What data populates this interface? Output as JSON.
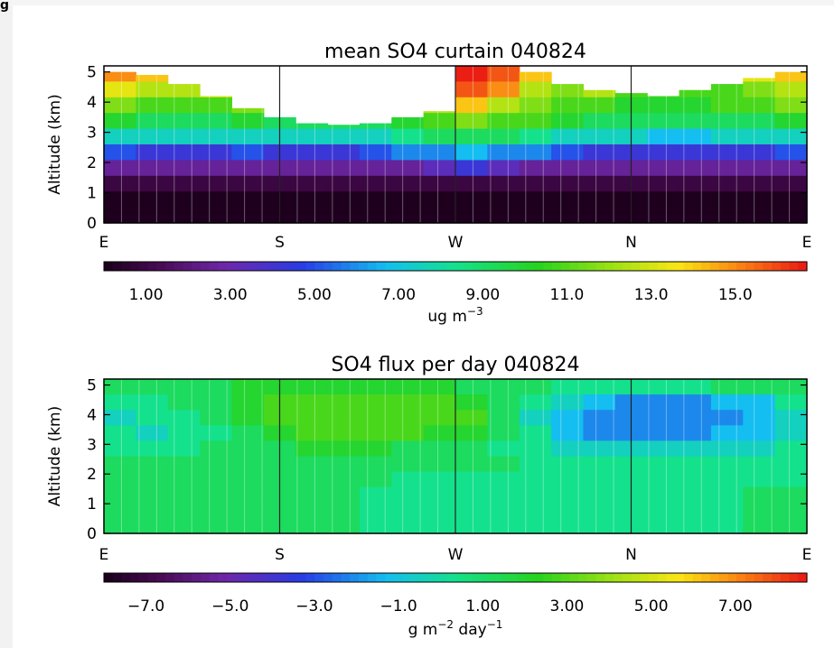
{
  "corner_label": "g",
  "chart_data": [
    {
      "type": "heatmap",
      "title": "mean SO4 curtain 040824",
      "xlabel": "",
      "ylabel": "Altitude (km)",
      "x_tick_labels": [
        "E",
        "S",
        "W",
        "N",
        "E"
      ],
      "y_tick_labels": [
        "0",
        "1",
        "2",
        "3",
        "4",
        "5"
      ],
      "ylim": [
        0,
        5.2
      ],
      "colorbar": {
        "tick_labels": [
          "1.00",
          "3.00",
          "5.00",
          "7.00",
          "9.00",
          "11.0",
          "13.0",
          "15.0"
        ],
        "range": [
          1.0,
          16.0
        ],
        "unit_base": "ug m",
        "unit_exp": "−3",
        "unit_tail": ""
      },
      "terrain_top_km": [
        5.0,
        4.9,
        4.6,
        4.2,
        3.8,
        3.5,
        3.3,
        3.25,
        3.3,
        3.5,
        3.7,
        5.2,
        5.2,
        5.0,
        4.6,
        4.4,
        4.3,
        4.2,
        4.4,
        4.6,
        4.8,
        5.0
      ],
      "field": [
        [
          14.5,
          14.0,
          13.5,
          14.5,
          15.0,
          14.0,
          13.5,
          12.5,
          12.0,
          13.0,
          15.5,
          16.0,
          15.5,
          14.0,
          13.0,
          15.0,
          13.5,
          12.5,
          12.5,
          13.0,
          13.0,
          13.5
        ],
        [
          13.0,
          12.5,
          12.0,
          13.0,
          13.5,
          12.5,
          12.0,
          11.5,
          11.5,
          12.5,
          15.0,
          15.5,
          14.5,
          12.5,
          11.5,
          12.0,
          11.0,
          10.5,
          10.5,
          11.0,
          11.5,
          12.0
        ],
        [
          11.5,
          11.0,
          10.5,
          11.0,
          11.5,
          11.0,
          11.0,
          10.5,
          11.0,
          11.5,
          12.5,
          13.5,
          12.5,
          11.5,
          11.0,
          10.5,
          10.0,
          10.0,
          10.0,
          10.5,
          11.0,
          11.5
        ],
        [
          10.0,
          9.5,
          9.5,
          9.5,
          10.0,
          9.5,
          9.5,
          9.5,
          9.5,
          10.0,
          11.0,
          11.5,
          11.0,
          10.5,
          10.0,
          9.5,
          9.5,
          9.0,
          9.0,
          9.5,
          9.5,
          10.0
        ],
        [
          8.0,
          7.5,
          7.5,
          7.5,
          8.0,
          7.5,
          7.5,
          7.5,
          8.0,
          8.5,
          9.0,
          9.5,
          9.0,
          8.5,
          8.0,
          7.5,
          7.5,
          7.0,
          7.0,
          7.5,
          7.5,
          8.0
        ],
        [
          5.5,
          5.0,
          5.0,
          5.0,
          5.5,
          5.0,
          5.0,
          5.0,
          5.5,
          6.0,
          6.5,
          7.0,
          6.5,
          6.0,
          5.5,
          5.0,
          5.0,
          4.5,
          4.5,
          5.0,
          5.0,
          5.5
        ],
        [
          3.5,
          3.0,
          3.0,
          3.0,
          3.0,
          3.0,
          3.0,
          3.0,
          3.5,
          3.5,
          4.0,
          4.5,
          4.0,
          3.5,
          3.0,
          3.0,
          3.0,
          3.0,
          3.0,
          3.0,
          3.0,
          3.5
        ],
        [
          1.5,
          1.5,
          1.5,
          1.5,
          1.5,
          1.5,
          1.5,
          1.5,
          1.5,
          1.5,
          2.0,
          2.0,
          2.0,
          1.5,
          1.5,
          1.5,
          1.5,
          1.5,
          1.5,
          1.5,
          1.5,
          1.5
        ],
        [
          1.0,
          1.0,
          1.0,
          1.0,
          1.0,
          1.0,
          1.0,
          1.0,
          1.0,
          1.0,
          1.0,
          1.0,
          1.0,
          1.0,
          1.0,
          1.0,
          1.0,
          1.0,
          1.0,
          1.0,
          1.0,
          1.0
        ],
        [
          1.0,
          1.0,
          1.0,
          1.0,
          1.0,
          1.0,
          1.0,
          1.0,
          1.0,
          1.0,
          1.0,
          1.0,
          1.0,
          1.0,
          1.0,
          1.0,
          1.0,
          1.0,
          1.0,
          1.0,
          1.0,
          1.0
        ]
      ]
    },
    {
      "type": "heatmap",
      "title": "SO4 flux per day 040824",
      "xlabel": "",
      "ylabel": "Altitude (km)",
      "x_tick_labels": [
        "E",
        "S",
        "W",
        "N",
        "E"
      ],
      "y_tick_labels": [
        "0",
        "1",
        "2",
        "3",
        "4",
        "5"
      ],
      "ylim": [
        0,
        5.2
      ],
      "colorbar": {
        "tick_labels": [
          "−7.0",
          "−5.0",
          "−3.0",
          "−1.0",
          "1.00",
          "3.00",
          "5.00",
          "7.00"
        ],
        "range": [
          -8.0,
          8.0
        ],
        "unit_base": "g m",
        "unit_exp": "−2",
        "unit_tail": "day",
        "unit_tail_exp": "−1"
      },
      "terrain_top_km": [
        5.2,
        5.2,
        5.2,
        5.2,
        5.2,
        5.2,
        5.2,
        5.2,
        5.2,
        5.2,
        5.2,
        5.2,
        5.2,
        5.2,
        5.2,
        5.2,
        5.2,
        5.2,
        5.2,
        5.2,
        5.2,
        5.2
      ],
      "field": [
        [
          0.5,
          0.6,
          0.6,
          0.9,
          1.3,
          1.5,
          1.4,
          1.3,
          1.3,
          1.2,
          1.2,
          1.0,
          0.6,
          0.4,
          0.3,
          0.3,
          0.3,
          0.3,
          0.3,
          0.4,
          0.5,
          0.5
        ],
        [
          0.0,
          0.3,
          0.5,
          0.8,
          1.5,
          2.0,
          2.1,
          2.0,
          2.1,
          2.1,
          2.0,
          1.5,
          0.5,
          0.0,
          -1.0,
          -2.0,
          -2.2,
          -2.2,
          -2.1,
          -2.0,
          -1.5,
          0.0
        ],
        [
          -0.6,
          -0.4,
          0.2,
          0.6,
          1.3,
          2.0,
          2.2,
          2.2,
          2.5,
          2.6,
          2.5,
          2.0,
          0.8,
          -0.6,
          -1.8,
          -2.4,
          -2.6,
          -2.6,
          -2.4,
          -2.2,
          -1.8,
          -0.8
        ],
        [
          -0.4,
          -0.5,
          -0.2,
          0.3,
          1.0,
          1.6,
          2.0,
          2.0,
          2.0,
          2.0,
          1.8,
          1.4,
          0.6,
          -0.4,
          -1.4,
          -2.2,
          -2.4,
          -2.4,
          -2.2,
          -2.0,
          -1.6,
          -0.6
        ],
        [
          0.2,
          0.2,
          0.3,
          0.4,
          0.6,
          0.9,
          1.2,
          1.3,
          1.2,
          1.1,
          1.0,
          0.7,
          0.3,
          -0.2,
          -0.6,
          -1.0,
          -1.1,
          -1.1,
          -1.0,
          -0.9,
          -0.6,
          -0.3
        ],
        [
          0.5,
          0.5,
          0.5,
          0.5,
          0.5,
          0.5,
          0.6,
          0.6,
          0.6,
          0.6,
          0.6,
          0.5,
          0.4,
          0.1,
          -0.2,
          -0.3,
          -0.3,
          -0.3,
          -0.3,
          -0.2,
          -0.1,
          0.1
        ],
        [
          0.5,
          0.5,
          0.5,
          0.5,
          0.5,
          0.5,
          0.5,
          0.5,
          0.4,
          0.2,
          0.0,
          -0.2,
          -0.3,
          -0.3,
          -0.2,
          -0.2,
          -0.2,
          -0.2,
          -0.1,
          0.0,
          0.2,
          0.3
        ],
        [
          0.6,
          0.6,
          0.6,
          0.6,
          0.6,
          0.6,
          0.6,
          0.5,
          0.2,
          0.0,
          -0.2,
          -0.3,
          -0.3,
          -0.3,
          -0.3,
          -0.3,
          -0.3,
          -0.2,
          -0.1,
          0.1,
          0.4,
          0.5
        ],
        [
          0.6,
          0.6,
          0.6,
          0.6,
          0.6,
          0.6,
          0.6,
          0.5,
          0.3,
          0.0,
          -0.2,
          -0.3,
          -0.3,
          -0.3,
          -0.3,
          -0.3,
          -0.3,
          -0.2,
          0.0,
          0.3,
          0.5,
          0.6
        ],
        [
          0.6,
          0.6,
          0.6,
          0.6,
          0.6,
          0.6,
          0.6,
          0.5,
          0.3,
          0.0,
          -0.2,
          -0.3,
          -0.3,
          -0.3,
          -0.3,
          -0.3,
          -0.3,
          -0.2,
          0.0,
          0.3,
          0.5,
          0.6
        ]
      ]
    }
  ]
}
